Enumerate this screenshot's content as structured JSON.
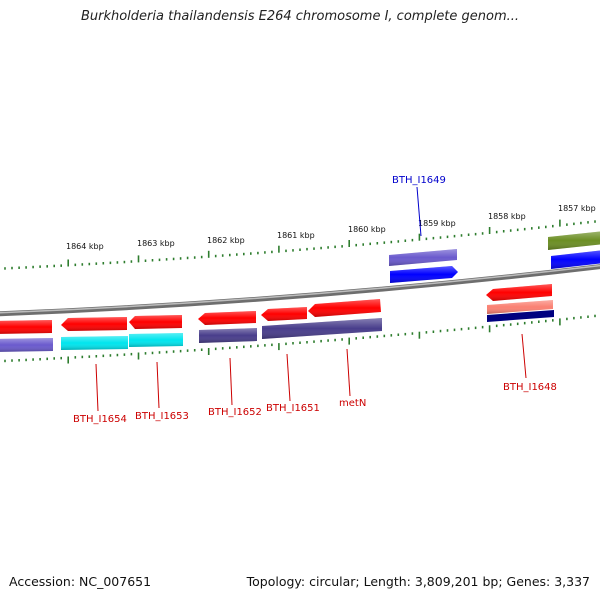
{
  "header": {
    "title": "Burkholderia thailandensis E264 chromosome I, complete genom..."
  },
  "footer": {
    "accession": "Accession: NC_007651",
    "summary": "Topology: circular; Length: 3,809,201 bp; Genes: 3,337"
  },
  "colors": {
    "backbone": "#888888",
    "tick": "#2e7d2e",
    "label_red": "#cc0000",
    "label_blue": "#0000cc"
  },
  "scale": {
    "unit": "kbp",
    "ticks": [
      {
        "label": "1864 kbp"
      },
      {
        "label": "1863 kbp"
      },
      {
        "label": "1862 kbp"
      },
      {
        "label": "1861 kbp"
      },
      {
        "label": "1860 kbp"
      },
      {
        "label": "1859 kbp"
      },
      {
        "label": "1858 kbp"
      },
      {
        "label": "1857 kbp"
      }
    ]
  },
  "gene_labels": [
    {
      "name": "BTH_I1654",
      "color": "#cc0000"
    },
    {
      "name": "BTH_I1653",
      "color": "#cc0000"
    },
    {
      "name": "BTH_I1652",
      "color": "#cc0000"
    },
    {
      "name": "BTH_I1651",
      "color": "#cc0000"
    },
    {
      "name": "metN",
      "color": "#cc0000"
    },
    {
      "name": "BTH_I1648",
      "color": "#cc0000"
    },
    {
      "name": "BTH_I1649",
      "color": "#0000cc"
    }
  ],
  "feature_colors": {
    "gene": "#ff0000",
    "cds_cyan": "#00e5ee",
    "cds_purple": "#6a5acd",
    "cds_dark_slate": "#483d8b",
    "cds_blue": "#0000ff",
    "cds_navy": "#000080",
    "cds_salmon": "#fa8072",
    "cds_olive": "#6b8e23"
  }
}
